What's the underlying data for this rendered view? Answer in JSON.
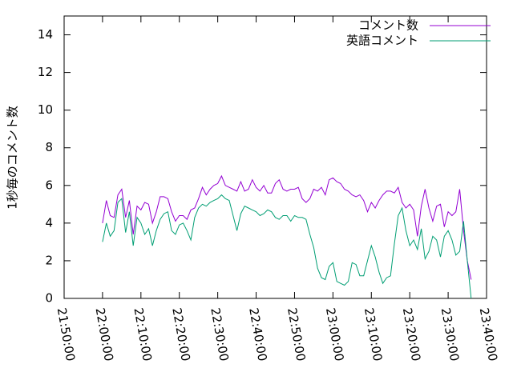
{
  "chart_data": {
    "type": "line",
    "ylabel": "1秒毎のコメント数",
    "x": [
      "22:00:00",
      "22:01:00",
      "22:02:00",
      "22:03:00",
      "22:04:00",
      "22:05:00",
      "22:06:00",
      "22:07:00",
      "22:08:00",
      "22:09:00",
      "22:10:00",
      "22:11:00",
      "22:12:00",
      "22:13:00",
      "22:14:00",
      "22:15:00",
      "22:16:00",
      "22:17:00",
      "22:18:00",
      "22:19:00",
      "22:20:00",
      "22:21:00",
      "22:22:00",
      "22:23:00",
      "22:24:00",
      "22:25:00",
      "22:26:00",
      "22:27:00",
      "22:28:00",
      "22:29:00",
      "22:30:00",
      "22:31:00",
      "22:32:00",
      "22:33:00",
      "22:34:00",
      "22:35:00",
      "22:36:00",
      "22:37:00",
      "22:38:00",
      "22:39:00",
      "22:40:00",
      "22:41:00",
      "22:42:00",
      "22:43:00",
      "22:44:00",
      "22:45:00",
      "22:46:00",
      "22:47:00",
      "22:48:00",
      "22:49:00",
      "22:50:00",
      "22:51:00",
      "22:52:00",
      "22:53:00",
      "22:54:00",
      "22:55:00",
      "22:56:00",
      "22:57:00",
      "22:58:00",
      "22:59:00",
      "23:00:00",
      "23:01:00",
      "23:02:00",
      "23:03:00",
      "23:04:00",
      "23:05:00",
      "23:06:00",
      "23:07:00",
      "23:08:00",
      "23:09:00",
      "23:10:00",
      "23:11:00",
      "23:12:00",
      "23:13:00",
      "23:14:00",
      "23:15:00",
      "23:16:00",
      "23:17:00",
      "23:18:00",
      "23:19:00",
      "23:20:00",
      "23:21:00",
      "23:22:00",
      "23:23:00",
      "23:24:00",
      "23:25:00",
      "23:26:00",
      "23:27:00",
      "23:28:00",
      "23:29:00",
      "23:30:00",
      "23:31:00",
      "23:32:00",
      "23:33:00",
      "23:34:00",
      "23:35:00",
      "23:36:00"
    ],
    "series": [
      {
        "name": "コメント数",
        "color": "#9400d3",
        "values": [
          4.0,
          5.2,
          4.4,
          4.3,
          5.5,
          5.8,
          4.3,
          5.2,
          3.4,
          4.9,
          4.7,
          5.1,
          5.0,
          4.0,
          4.6,
          5.4,
          5.4,
          5.3,
          4.6,
          4.1,
          4.4,
          4.4,
          4.2,
          4.7,
          4.8,
          5.3,
          5.9,
          5.5,
          5.8,
          6.0,
          6.1,
          6.5,
          6.0,
          5.9,
          5.8,
          5.7,
          6.2,
          5.7,
          5.8,
          6.3,
          5.9,
          5.7,
          6.0,
          5.6,
          5.6,
          6.1,
          6.3,
          5.8,
          5.7,
          5.8,
          5.8,
          5.9,
          5.3,
          5.1,
          5.3,
          5.8,
          5.7,
          5.9,
          5.5,
          6.3,
          6.4,
          6.2,
          6.1,
          5.8,
          5.7,
          5.5,
          5.4,
          5.5,
          5.2,
          4.6,
          5.1,
          4.8,
          5.2,
          5.5,
          5.7,
          5.7,
          5.6,
          5.9,
          5.1,
          4.8,
          5.0,
          4.7,
          3.3,
          4.9,
          5.8,
          4.8,
          4.1,
          4.9,
          5.0,
          3.8,
          4.6,
          4.4,
          4.6,
          5.8,
          3.6,
          2.0,
          1.0
        ]
      },
      {
        "name": "英語コメント",
        "color": "#009e73",
        "values": [
          3.0,
          4.0,
          3.3,
          3.6,
          5.1,
          5.3,
          3.5,
          4.6,
          2.8,
          4.3,
          4.0,
          3.4,
          3.7,
          2.8,
          3.6,
          4.2,
          4.5,
          4.6,
          3.6,
          3.4,
          3.9,
          4.0,
          3.6,
          3.1,
          4.3,
          4.8,
          5.0,
          4.9,
          5.1,
          5.2,
          5.3,
          5.5,
          5.3,
          5.2,
          4.4,
          3.6,
          4.5,
          4.9,
          4.8,
          4.7,
          4.6,
          4.4,
          4.5,
          4.7,
          4.6,
          4.3,
          4.2,
          4.4,
          4.4,
          4.1,
          4.4,
          4.3,
          4.3,
          4.2,
          3.4,
          2.7,
          1.6,
          1.1,
          1.0,
          1.7,
          1.9,
          0.9,
          0.8,
          0.7,
          0.9,
          1.9,
          1.8,
          1.2,
          1.2,
          2.0,
          2.8,
          2.2,
          1.4,
          0.8,
          1.1,
          1.2,
          2.9,
          4.4,
          4.8,
          3.6,
          2.8,
          3.1,
          2.6,
          3.7,
          2.1,
          2.5,
          3.3,
          3.1,
          2.2,
          3.3,
          3.6,
          3.1,
          2.3,
          2.5,
          4.1,
          2.0,
          0.0
        ]
      }
    ],
    "xlim": [
      "21:50:00",
      "23:40:00"
    ],
    "xticks": [
      "21:50:00",
      "22:00:00",
      "22:10:00",
      "22:20:00",
      "22:30:00",
      "22:40:00",
      "22:50:00",
      "23:00:00",
      "23:10:00",
      "23:20:00",
      "23:30:00",
      "23:40:00"
    ],
    "ylim": [
      0,
      15
    ],
    "yticks": [
      0,
      2,
      4,
      6,
      8,
      10,
      12,
      14
    ],
    "legend": "top-right"
  }
}
